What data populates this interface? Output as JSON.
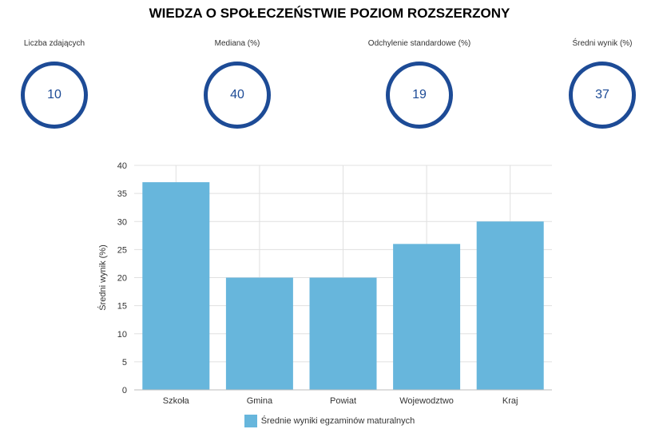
{
  "title": "WIEDZA O SPOŁECZEŃSTWIE POZIOM ROZSZERZONY",
  "stats": [
    {
      "label": "Liczba zdających",
      "value": "10"
    },
    {
      "label": "Mediana (%)",
      "value": "40"
    },
    {
      "label": "Odchylenie standardowe (%)",
      "value": "19"
    },
    {
      "label": "Średni wynik (%)",
      "value": "37"
    }
  ],
  "colors": {
    "circle": "#1d4b96",
    "bar": "#67b6dc",
    "grid": "#e0e0e0"
  },
  "chart_data": {
    "type": "bar",
    "categories": [
      "Szkoła",
      "Gmina",
      "Powiat",
      "Wojewodztwo",
      "Kraj"
    ],
    "series": [
      {
        "name": "Średnie wyniki egzaminów maturalnych",
        "values": [
          37,
          20,
          20,
          26,
          30
        ]
      }
    ],
    "ylabel": "Średni wynik (%)",
    "xlabel": "",
    "ylim": [
      0,
      40
    ],
    "yticks": [
      0,
      5,
      10,
      15,
      20,
      25,
      30,
      35,
      40
    ],
    "grid": true,
    "legend": "bottom"
  }
}
